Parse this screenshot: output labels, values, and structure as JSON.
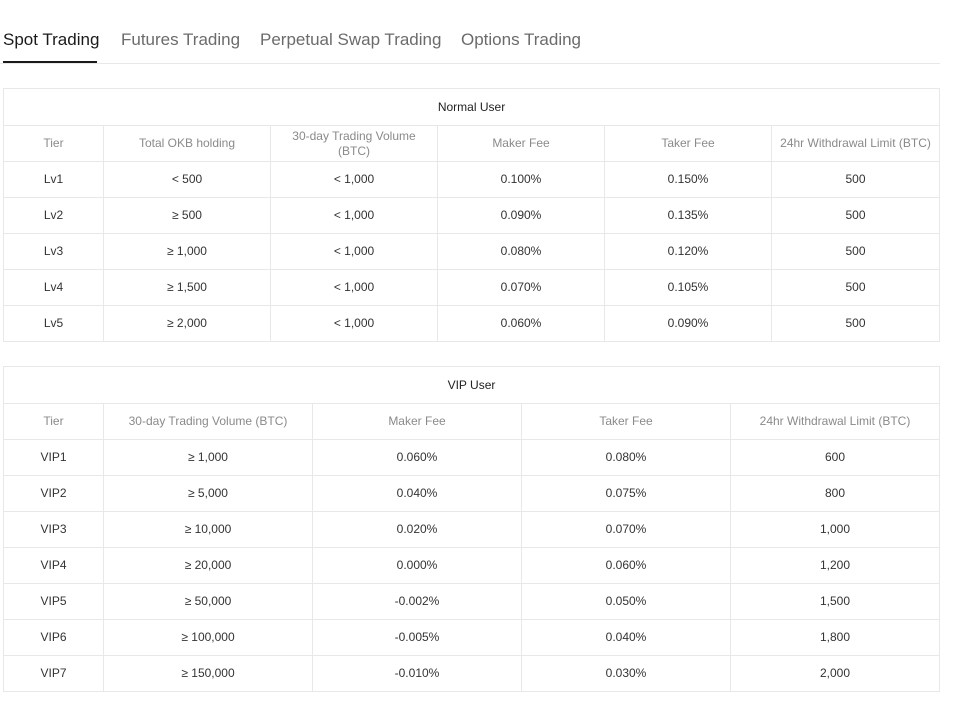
{
  "tabs": [
    {
      "label": "Spot Trading",
      "active": true
    },
    {
      "label": "Futures Trading",
      "active": false
    },
    {
      "label": "Perpetual Swap Trading",
      "active": false
    },
    {
      "label": "Options Trading",
      "active": false
    }
  ],
  "normal": {
    "title": "Normal User",
    "headers": [
      "Tier",
      "Total OKB holding",
      "30-day Trading Volume (BTC)",
      "Maker Fee",
      "Taker Fee",
      "24hr Withdrawal Limit (BTC)"
    ],
    "rows": [
      [
        "Lv1",
        "< 500",
        "< 1,000",
        "0.100%",
        "0.150%",
        "500"
      ],
      [
        "Lv2",
        "≥ 500",
        "< 1,000",
        "0.090%",
        "0.135%",
        "500"
      ],
      [
        "Lv3",
        "≥ 1,000",
        "< 1,000",
        "0.080%",
        "0.120%",
        "500"
      ],
      [
        "Lv4",
        "≥ 1,500",
        "< 1,000",
        "0.070%",
        "0.105%",
        "500"
      ],
      [
        "Lv5",
        "≥ 2,000",
        "< 1,000",
        "0.060%",
        "0.090%",
        "500"
      ]
    ]
  },
  "vip": {
    "title": "VIP User",
    "headers": [
      "Tier",
      "30-day Trading Volume (BTC)",
      "Maker Fee",
      "Taker Fee",
      "24hr Withdrawal Limit (BTC)"
    ],
    "rows": [
      [
        "VIP1",
        "≥ 1,000",
        "0.060%",
        "0.080%",
        "600"
      ],
      [
        "VIP2",
        "≥ 5,000",
        "0.040%",
        "0.075%",
        "800"
      ],
      [
        "VIP3",
        "≥ 10,000",
        "0.020%",
        "0.070%",
        "1,000"
      ],
      [
        "VIP4",
        "≥ 20,000",
        "0.000%",
        "0.060%",
        "1,200"
      ],
      [
        "VIP5",
        "≥ 50,000",
        "-0.002%",
        "0.050%",
        "1,500"
      ],
      [
        "VIP6",
        "≥ 100,000",
        "-0.005%",
        "0.040%",
        "1,800"
      ],
      [
        "VIP7",
        "≥ 150,000",
        "-0.010%",
        "0.030%",
        "2,000"
      ]
    ]
  }
}
